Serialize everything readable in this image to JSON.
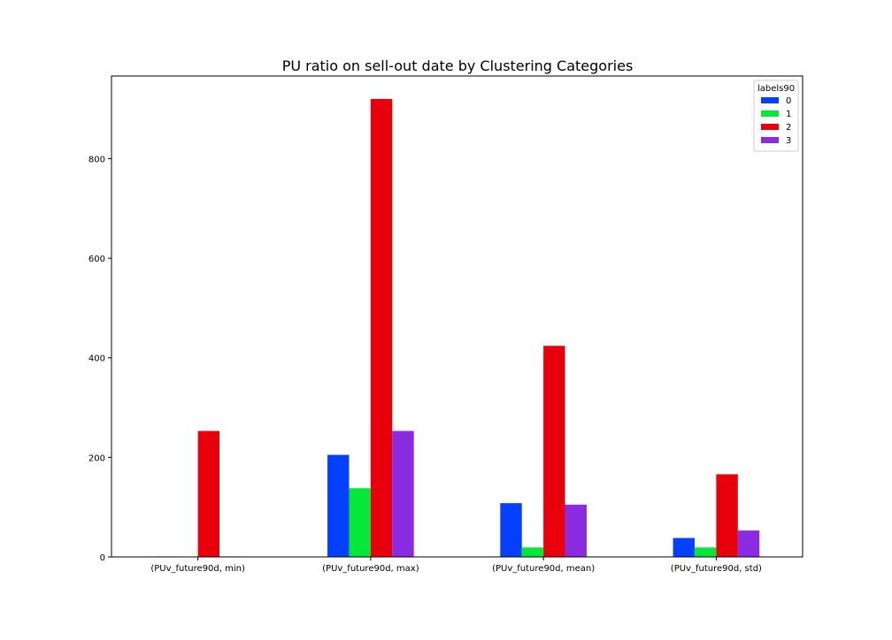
{
  "chart_data": {
    "type": "bar",
    "title": "PU ratio on sell-out date by Clustering Categories",
    "xlabel": "",
    "ylabel": "",
    "categories": [
      "(PUv_future90d, min)",
      "(PUv_future90d, max)",
      "(PUv_future90d, mean)",
      "(PUv_future90d, std)"
    ],
    "series": [
      {
        "name": "0",
        "color": "#0340ff",
        "values": [
          1,
          205,
          108,
          38
        ]
      },
      {
        "name": "1",
        "color": "#05e83a",
        "values": [
          0,
          138,
          19,
          19
        ]
      },
      {
        "name": "2",
        "color": "#e8000b",
        "values": [
          253,
          920,
          424,
          166
        ]
      },
      {
        "name": "3",
        "color": "#8a2be2",
        "values": [
          1,
          253,
          105,
          53
        ]
      }
    ],
    "ylim": [
      0,
      966
    ],
    "yticks": [
      0,
      200,
      400,
      600,
      800
    ],
    "grid": false,
    "legend": {
      "title": "labels90",
      "placement": "top-right"
    }
  }
}
